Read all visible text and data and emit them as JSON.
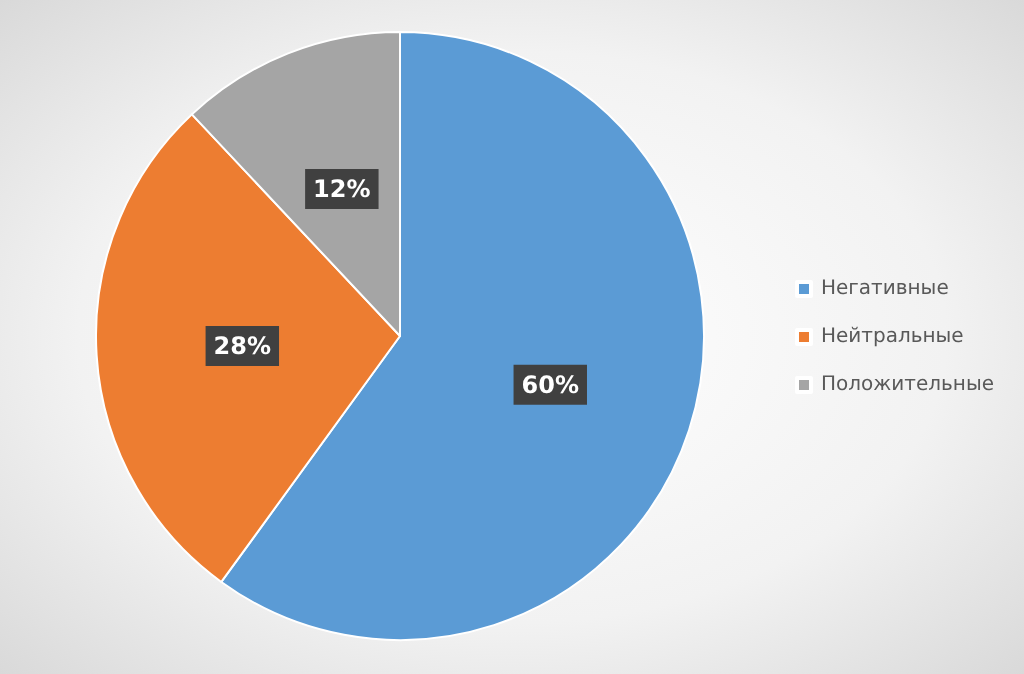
{
  "chart_data": {
    "type": "pie",
    "categories": [
      "Негативные",
      "Нейтральные",
      "Положительные"
    ],
    "values": [
      60,
      28,
      12
    ],
    "colors": [
      "#5b9bd5",
      "#ed7d31",
      "#a5a5a5"
    ],
    "value_labels": [
      "60%",
      "28%",
      "12%"
    ],
    "legend": "right"
  }
}
